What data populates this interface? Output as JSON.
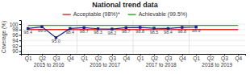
{
  "chart_data": {
    "type": "line",
    "title": "National trend data",
    "categories": [
      "Q1",
      "Q2",
      "Q3",
      "Q4",
      "Q1",
      "Q2",
      "Q3",
      "Q4",
      "Q1",
      "Q2",
      "Q3",
      "Q4",
      "Q1",
      "Q2",
      "Q3",
      "Q4"
    ],
    "category_groups": [
      "2015 to 2016",
      "2016 to 2017",
      "2017 to 2018",
      "2018 to 2019"
    ],
    "series": [
      {
        "color": "#1a237e",
        "marker": "square",
        "values": [
          98.4,
          99.0,
          95.0,
          98.4,
          98.7,
          98.3,
          98.2,
          98.7,
          98.8,
          98.5,
          98.4,
          98.8,
          98.9,
          null,
          null,
          null
        ],
        "value_labels": [
          "98.4",
          "99.0",
          "95.0",
          "98.4",
          "98.7",
          "98.3",
          "98.2",
          "98.7",
          "98.8",
          "98.5",
          "98.4",
          "98.8",
          "98.9",
          null,
          null,
          null
        ]
      },
      {
        "name": "Acceptable (98%)*",
        "color": "#e03030",
        "values": [
          98.0,
          98.0,
          98.0,
          98.0,
          98.0,
          98.0,
          98.0,
          98.0,
          98.0,
          98.0,
          98.0,
          98.0,
          98.0,
          98.0,
          98.0,
          98.0
        ]
      },
      {
        "name": "Achievable (99.5%)",
        "color": "#2db02d",
        "values": [
          99.5,
          99.5,
          99.5,
          99.5,
          99.5,
          99.5,
          99.5,
          99.5,
          99.5,
          99.5,
          99.5,
          99.5,
          99.5,
          99.5,
          99.5,
          99.5
        ]
      }
    ],
    "ylabel": "Coverage (%)",
    "ylim": [
      89.0,
      101.5
    ],
    "yticks": [
      90,
      92,
      94,
      96,
      98,
      100
    ],
    "grid": true,
    "data_labels": true
  }
}
